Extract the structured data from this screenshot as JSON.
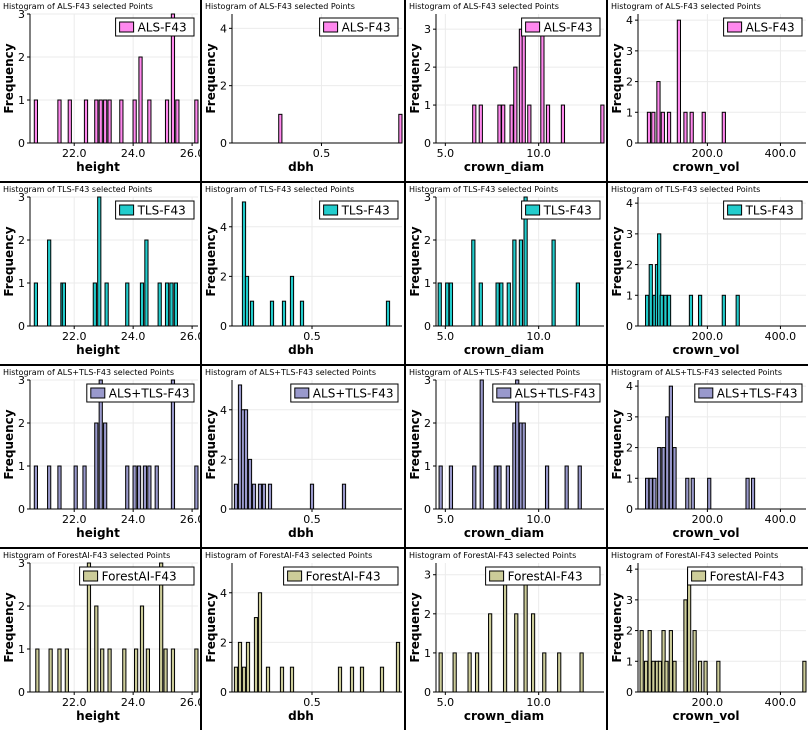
{
  "chart_data": [
    {
      "type": "bar",
      "title": "Histogram of ALS-F43 selected Points",
      "legend": "ALS-F43",
      "color": "#ff88ee",
      "xlabel": "height",
      "ylabel": "Frequency",
      "xlim": [
        20.5,
        26.2
      ],
      "ylim": [
        0,
        3
      ],
      "xticks": [
        22.0,
        24.0,
        26.0
      ],
      "xtick_labels": [
        "22.0",
        "24.0",
        "26.0"
      ],
      "yticks": [
        0,
        1,
        2,
        3
      ],
      "ytick_labels": [
        "0",
        "1",
        "2",
        "3"
      ],
      "bars": [
        [
          20.7,
          1
        ],
        [
          21.5,
          1
        ],
        [
          21.85,
          1
        ],
        [
          22.4,
          1
        ],
        [
          22.75,
          1
        ],
        [
          22.9,
          1
        ],
        [
          23.05,
          1
        ],
        [
          23.2,
          1
        ],
        [
          23.6,
          1
        ],
        [
          24.05,
          1
        ],
        [
          24.25,
          2
        ],
        [
          24.55,
          1
        ],
        [
          25.15,
          1
        ],
        [
          25.35,
          3
        ],
        [
          25.5,
          1
        ],
        [
          26.15,
          1
        ]
      ]
    },
    {
      "type": "bar",
      "title": "Histogram of ALS-F43 selected Points",
      "legend": "ALS-F43",
      "color": "#ff88ee",
      "xlabel": "dbh",
      "ylabel": "Frequency",
      "xlim": [
        0.0,
        0.95
      ],
      "ylim": [
        0,
        4.5
      ],
      "xticks": [
        0.5
      ],
      "xtick_labels": [
        "0.5"
      ],
      "yticks": [
        0,
        2,
        4
      ],
      "ytick_labels": [
        "0",
        "2",
        "4"
      ],
      "bars": [
        [
          0.27,
          1
        ],
        [
          0.945,
          1
        ]
      ]
    },
    {
      "type": "bar",
      "title": "Histogram of ALS-F43 selected Points",
      "legend": "ALS-F43",
      "color": "#ff88ee",
      "xlabel": "crown_diam",
      "ylabel": "Frequency",
      "xlim": [
        4.5,
        13.5
      ],
      "ylim": [
        0,
        3.4
      ],
      "xticks": [
        5.0,
        10.0
      ],
      "xtick_labels": [
        "5.0",
        "10.0"
      ],
      "yticks": [
        0,
        1,
        2,
        3
      ],
      "ytick_labels": [
        "0",
        "1",
        "2",
        "3"
      ],
      "bars": [
        [
          6.55,
          1
        ],
        [
          6.9,
          1
        ],
        [
          7.9,
          1
        ],
        [
          8.1,
          1
        ],
        [
          8.55,
          1
        ],
        [
          8.75,
          2
        ],
        [
          9.05,
          3
        ],
        [
          9.2,
          3
        ],
        [
          9.5,
          1
        ],
        [
          10.2,
          3
        ],
        [
          10.5,
          1
        ],
        [
          11.3,
          1
        ],
        [
          13.45,
          1
        ]
      ]
    },
    {
      "type": "bar",
      "title": "Histogram of ALS-F43 selected Points",
      "legend": "ALS-F43",
      "color": "#ff88ee",
      "xlabel": "crown_vol",
      "ylabel": "Frequency",
      "xlim": [
        10,
        470
      ],
      "ylim": [
        0,
        4.2
      ],
      "xticks": [
        200.0,
        400.0
      ],
      "xtick_labels": [
        "200.0",
        "400.0"
      ],
      "yticks": [
        0,
        1,
        2,
        3,
        4
      ],
      "ytick_labels": [
        "0",
        "1",
        "2",
        "3",
        "4"
      ],
      "bars": [
        [
          40,
          1
        ],
        [
          52,
          1
        ],
        [
          66,
          2
        ],
        [
          78,
          1
        ],
        [
          95,
          1
        ],
        [
          122,
          4
        ],
        [
          140,
          1
        ],
        [
          157,
          1
        ],
        [
          190,
          1
        ],
        [
          245,
          1
        ]
      ]
    },
    {
      "type": "bar",
      "title": "Histogram of TLS-F43 selected Points",
      "legend": "TLS-F43",
      "color": "#22cccc",
      "xlabel": "height",
      "ylabel": "Frequency",
      "xlim": [
        20.5,
        26.2
      ],
      "ylim": [
        0,
        3
      ],
      "xticks": [
        22.0,
        24.0,
        26.0
      ],
      "xtick_labels": [
        "22.0",
        "24.0",
        "26.0"
      ],
      "yticks": [
        0,
        1,
        2,
        3
      ],
      "ytick_labels": [
        "0",
        "1",
        "2",
        "3"
      ],
      "bars": [
        [
          20.7,
          1
        ],
        [
          21.15,
          2
        ],
        [
          21.6,
          1
        ],
        [
          21.65,
          1
        ],
        [
          22.7,
          1
        ],
        [
          22.85,
          3
        ],
        [
          23.1,
          1
        ],
        [
          23.8,
          1
        ],
        [
          24.3,
          1
        ],
        [
          24.45,
          2
        ],
        [
          24.9,
          1
        ],
        [
          25.15,
          1
        ],
        [
          25.3,
          1
        ],
        [
          25.45,
          1
        ]
      ]
    },
    {
      "type": "bar",
      "title": "Histogram of TLS-F43 selected Points",
      "legend": "TLS-F43",
      "color": "#22cccc",
      "xlabel": "dbh",
      "ylabel": "Frequency",
      "xlim": [
        0.1,
        0.95
      ],
      "ylim": [
        0,
        5.2
      ],
      "xticks": [
        0.5
      ],
      "xtick_labels": [
        "0.5"
      ],
      "yticks": [
        0,
        2,
        4
      ],
      "ytick_labels": [
        "0",
        "2",
        "4"
      ],
      "bars": [
        [
          0.16,
          5
        ],
        [
          0.175,
          2
        ],
        [
          0.2,
          1
        ],
        [
          0.3,
          1
        ],
        [
          0.36,
          1
        ],
        [
          0.4,
          2
        ],
        [
          0.45,
          1
        ],
        [
          0.88,
          1
        ]
      ]
    },
    {
      "type": "bar",
      "title": "Histogram of TLS-F43 selected Points",
      "legend": "TLS-F43",
      "color": "#22cccc",
      "xlabel": "crown_diam",
      "ylabel": "Frequency",
      "xlim": [
        4.5,
        13.5
      ],
      "ylim": [
        0,
        3
      ],
      "xticks": [
        5.0,
        10.0
      ],
      "xtick_labels": [
        "5.0",
        "10.0"
      ],
      "yticks": [
        0,
        1,
        2,
        3
      ],
      "ytick_labels": [
        "0",
        "1",
        "2",
        "3"
      ],
      "bars": [
        [
          4.7,
          1
        ],
        [
          5.1,
          1
        ],
        [
          5.3,
          1
        ],
        [
          6.5,
          2
        ],
        [
          6.9,
          1
        ],
        [
          7.8,
          1
        ],
        [
          8.0,
          1
        ],
        [
          8.4,
          1
        ],
        [
          8.7,
          2
        ],
        [
          9.05,
          2
        ],
        [
          9.3,
          3
        ],
        [
          10.8,
          2
        ],
        [
          12.1,
          1
        ]
      ]
    },
    {
      "type": "bar",
      "title": "Histogram of TLS-F43 selected Points",
      "legend": "TLS-F43",
      "color": "#22cccc",
      "xlabel": "crown_vol",
      "ylabel": "Frequency",
      "xlim": [
        10,
        470
      ],
      "ylim": [
        0,
        4.2
      ],
      "xticks": [
        200.0,
        400.0
      ],
      "xtick_labels": [
        "200.0",
        "400.0"
      ],
      "yticks": [
        0,
        1,
        2,
        3,
        4
      ],
      "ytick_labels": [
        "0",
        "1",
        "2",
        "3",
        "4"
      ],
      "bars": [
        [
          35,
          1
        ],
        [
          45,
          2
        ],
        [
          55,
          1
        ],
        [
          62,
          2
        ],
        [
          68,
          3
        ],
        [
          75,
          1
        ],
        [
          85,
          1
        ],
        [
          95,
          1
        ],
        [
          155,
          1
        ],
        [
          180,
          1
        ],
        [
          245,
          1
        ],
        [
          283,
          1
        ]
      ]
    },
    {
      "type": "bar",
      "title": "Histogram of ALS+TLS-F43 selected Points",
      "legend": "ALS+TLS-F43",
      "color": "#9999cc",
      "xlabel": "height",
      "ylabel": "Frequency",
      "xlim": [
        20.5,
        26.2
      ],
      "ylim": [
        0,
        3
      ],
      "xticks": [
        22.0,
        24.0,
        26.0
      ],
      "xtick_labels": [
        "22.0",
        "24.0",
        "26.0"
      ],
      "yticks": [
        0,
        1,
        2,
        3
      ],
      "ytick_labels": [
        "0",
        "1",
        "2",
        "3"
      ],
      "bars": [
        [
          20.7,
          1
        ],
        [
          21.15,
          1
        ],
        [
          21.5,
          1
        ],
        [
          22.05,
          1
        ],
        [
          22.35,
          1
        ],
        [
          22.75,
          2
        ],
        [
          22.9,
          3
        ],
        [
          23.05,
          2
        ],
        [
          23.8,
          1
        ],
        [
          24.05,
          1
        ],
        [
          24.2,
          1
        ],
        [
          24.4,
          1
        ],
        [
          24.55,
          1
        ],
        [
          24.8,
          1
        ],
        [
          25.35,
          3
        ],
        [
          26.15,
          1
        ]
      ]
    },
    {
      "type": "bar",
      "title": "Histogram of ALS+TLS-F43 selected Points",
      "legend": "ALS+TLS-F43",
      "color": "#9999cc",
      "xlabel": "dbh",
      "ylabel": "Frequency",
      "xlim": [
        0.1,
        0.95
      ],
      "ylim": [
        0,
        5.2
      ],
      "xticks": [
        0.5
      ],
      "xtick_labels": [
        "0.5"
      ],
      "yticks": [
        0,
        2,
        4
      ],
      "ytick_labels": [
        "0",
        "2",
        "4"
      ],
      "bars": [
        [
          0.12,
          1
        ],
        [
          0.14,
          5
        ],
        [
          0.155,
          4
        ],
        [
          0.17,
          4
        ],
        [
          0.19,
          2
        ],
        [
          0.21,
          1
        ],
        [
          0.24,
          1
        ],
        [
          0.26,
          1
        ],
        [
          0.29,
          1
        ],
        [
          0.5,
          1
        ],
        [
          0.66,
          1
        ]
      ]
    },
    {
      "type": "bar",
      "title": "Histogram of ALS+TLS-F43 selected Points",
      "legend": "ALS+TLS-F43",
      "color": "#9999cc",
      "xlabel": "crown_diam",
      "ylabel": "Frequency",
      "xlim": [
        4.5,
        13.5
      ],
      "ylim": [
        0,
        3
      ],
      "xticks": [
        5.0,
        10.0
      ],
      "xtick_labels": [
        "5.0",
        "10.0"
      ],
      "yticks": [
        0,
        1,
        2,
        3
      ],
      "ytick_labels": [
        "0",
        "1",
        "2",
        "3"
      ],
      "bars": [
        [
          4.75,
          1
        ],
        [
          5.3,
          1
        ],
        [
          6.55,
          1
        ],
        [
          6.95,
          3
        ],
        [
          7.7,
          1
        ],
        [
          7.9,
          1
        ],
        [
          8.35,
          1
        ],
        [
          8.7,
          2
        ],
        [
          8.85,
          3
        ],
        [
          9.05,
          2
        ],
        [
          9.2,
          2
        ],
        [
          10.45,
          1
        ],
        [
          11.5,
          1
        ],
        [
          12.2,
          1
        ]
      ]
    },
    {
      "type": "bar",
      "title": "Histogram of ALS+TLS-F43 selected Points",
      "legend": "ALS+TLS-F43",
      "color": "#9999cc",
      "xlabel": "crown_vol",
      "ylabel": "Frequency",
      "xlim": [
        10,
        470
      ],
      "ylim": [
        0,
        4.2
      ],
      "xticks": [
        200.0,
        400.0
      ],
      "xtick_labels": [
        "200.0",
        "400.0"
      ],
      "yticks": [
        0,
        1,
        2,
        3,
        4
      ],
      "ytick_labels": [
        "0",
        "1",
        "2",
        "3",
        "4"
      ],
      "bars": [
        [
          35,
          1
        ],
        [
          45,
          1
        ],
        [
          55,
          1
        ],
        [
          68,
          2
        ],
        [
          80,
          2
        ],
        [
          90,
          3
        ],
        [
          100,
          4
        ],
        [
          110,
          2
        ],
        [
          145,
          1
        ],
        [
          160,
          1
        ],
        [
          205,
          1
        ],
        [
          310,
          1
        ],
        [
          325,
          1
        ]
      ]
    },
    {
      "type": "bar",
      "title": "Histogram of ForestAI-F43 selected Points",
      "legend": "ForestAI-F43",
      "color": "#cccc99",
      "xlabel": "height",
      "ylabel": "Frequency",
      "xlim": [
        20.5,
        26.2
      ],
      "ylim": [
        0,
        3
      ],
      "xticks": [
        22.0,
        24.0,
        26.0
      ],
      "xtick_labels": [
        "22.0",
        "24.0",
        "26.0"
      ],
      "bars": [
        [
          20.75,
          1
        ],
        [
          21.2,
          1
        ],
        [
          21.5,
          1
        ],
        [
          21.75,
          1
        ],
        [
          22.5,
          3
        ],
        [
          22.75,
          2
        ],
        [
          22.95,
          1
        ],
        [
          23.2,
          1
        ],
        [
          23.7,
          1
        ],
        [
          24.1,
          1
        ],
        [
          24.3,
          2
        ],
        [
          24.5,
          1
        ],
        [
          24.95,
          3
        ],
        [
          25.1,
          1
        ],
        [
          25.35,
          1
        ],
        [
          26.15,
          1
        ]
      ],
      "yticks": [
        0,
        1,
        2,
        3
      ],
      "ytick_labels": [
        "0",
        "1",
        "2",
        "3"
      ]
    },
    {
      "type": "bar",
      "title": "Histogram of ForestAI-F43 selected Points",
      "legend": "ForestAI-F43",
      "color": "#cccc99",
      "xlabel": "dbh",
      "ylabel": "Frequency",
      "xlim": [
        0.1,
        0.95
      ],
      "ylim": [
        0,
        5.2
      ],
      "xticks": [
        0.5
      ],
      "xtick_labels": [
        "0.5"
      ],
      "yticks": [
        0,
        2,
        4
      ],
      "ytick_labels": [
        "0",
        "2",
        "4"
      ],
      "bars": [
        [
          0.12,
          1
        ],
        [
          0.14,
          2
        ],
        [
          0.16,
          1
        ],
        [
          0.18,
          2
        ],
        [
          0.22,
          3
        ],
        [
          0.24,
          4
        ],
        [
          0.28,
          1
        ],
        [
          0.35,
          1
        ],
        [
          0.4,
          1
        ],
        [
          0.64,
          1
        ],
        [
          0.7,
          1
        ],
        [
          0.75,
          1
        ],
        [
          0.85,
          1
        ],
        [
          0.93,
          2
        ]
      ]
    },
    {
      "type": "bar",
      "title": "Histogram of ForestAI-F43 selected Points",
      "legend": "ForestAI-F43",
      "color": "#cccc99",
      "xlabel": "crown_diam",
      "ylabel": "Frequency",
      "xlim": [
        4.5,
        13.5
      ],
      "ylim": [
        0,
        3.3
      ],
      "xticks": [
        5.0,
        10.0
      ],
      "xtick_labels": [
        "5.0",
        "10.0"
      ],
      "yticks": [
        0,
        1,
        2,
        3
      ],
      "ytick_labels": [
        "0",
        "1",
        "2",
        "3"
      ],
      "bars": [
        [
          4.75,
          1
        ],
        [
          5.5,
          1
        ],
        [
          6.3,
          1
        ],
        [
          6.7,
          1
        ],
        [
          7.4,
          2
        ],
        [
          8.2,
          3
        ],
        [
          8.8,
          2
        ],
        [
          9.3,
          3
        ],
        [
          9.7,
          2
        ],
        [
          10.3,
          1
        ],
        [
          11.1,
          1
        ],
        [
          12.3,
          1
        ]
      ]
    },
    {
      "type": "bar",
      "title": "Histogram of ForestAI-F43 selected Points",
      "legend": "ForestAI-F43",
      "color": "#cccc99",
      "xlabel": "crown_vol",
      "ylabel": "Frequency",
      "xlim": [
        10,
        470
      ],
      "ylim": [
        0,
        4.2
      ],
      "xticks": [
        200.0,
        400.0
      ],
      "xtick_labels": [
        "200.0",
        "400.0"
      ],
      "yticks": [
        0,
        1,
        2,
        3,
        4
      ],
      "ytick_labels": [
        "0",
        "1",
        "2",
        "3",
        "4"
      ],
      "bars": [
        [
          20,
          2
        ],
        [
          32,
          1
        ],
        [
          42,
          2
        ],
        [
          52,
          1
        ],
        [
          62,
          1
        ],
        [
          70,
          1
        ],
        [
          80,
          2
        ],
        [
          88,
          1
        ],
        [
          100,
          2
        ],
        [
          110,
          1
        ],
        [
          140,
          3
        ],
        [
          150,
          4
        ],
        [
          165,
          2
        ],
        [
          180,
          1
        ],
        [
          195,
          1
        ],
        [
          230,
          1
        ],
        [
          468,
          1
        ]
      ]
    }
  ]
}
